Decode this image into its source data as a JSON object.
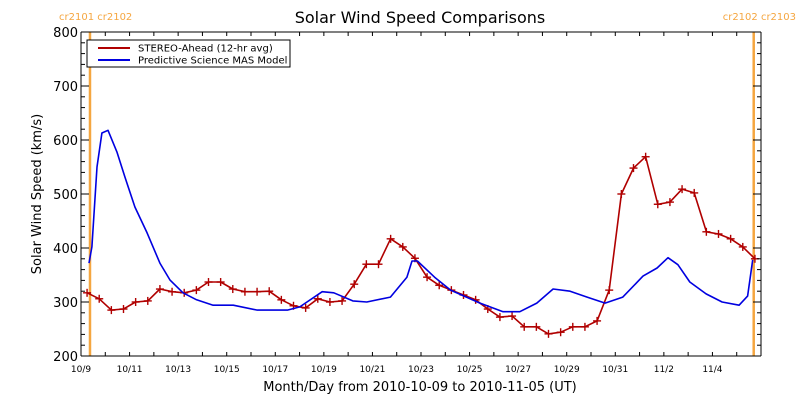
{
  "chart_data": {
    "type": "line",
    "title": "Solar Wind Speed Comparisons",
    "xlabel": "Month/Day from 2010-10-09 to 2010-11-05 (UT)",
    "ylabel": "Solar Wind Speed (km/s)",
    "x_units": "days since 2010-10-09 00:00 UT",
    "xlim": [
      0,
      28
    ],
    "ylim": [
      200,
      800
    ],
    "y_ticks": [
      200,
      300,
      400,
      500,
      600,
      700,
      800
    ],
    "y_tick_labels": [
      "200",
      "300",
      "400",
      "500",
      "600",
      "700",
      "800"
    ],
    "x_ticks": [
      0,
      2,
      4,
      6,
      8,
      10,
      12,
      14,
      16,
      18,
      20,
      22,
      24,
      26
    ],
    "x_tick_labels": [
      "10/9",
      "10/11",
      "10/13",
      "10/15",
      "10/17",
      "10/19",
      "10/21",
      "10/23",
      "10/25",
      "10/27",
      "10/29",
      "10/31",
      "11/2",
      "11/4"
    ],
    "grid": false,
    "legend_position": "top-left",
    "carrington_markers": [
      {
        "day": 0.37,
        "label": "cr2101 cr2102",
        "align": "left"
      },
      {
        "day": 27.7,
        "label": "cr2102 cr2103",
        "align": "right"
      }
    ],
    "series": [
      {
        "name": "STEREO-Ahead (12-hr avg)",
        "color": "#b00000",
        "marker": "plus",
        "x": [
          0.25,
          0.75,
          1.25,
          1.75,
          2.25,
          2.75,
          3.25,
          3.75,
          4.25,
          4.75,
          5.25,
          5.75,
          6.25,
          6.75,
          7.25,
          7.75,
          8.25,
          8.75,
          9.25,
          9.75,
          10.25,
          10.75,
          11.25,
          11.75,
          12.25,
          12.75,
          13.25,
          13.75,
          14.25,
          14.75,
          15.25,
          15.75,
          16.25,
          16.75,
          17.25,
          17.75,
          18.25,
          18.75,
          19.25,
          19.75,
          20.25,
          20.75,
          21.25,
          21.75,
          22.25,
          22.75,
          23.25,
          23.75,
          24.25,
          24.75,
          25.25,
          25.75,
          26.25,
          26.75,
          27.25,
          27.75
        ],
        "values": [
          317,
          306,
          285,
          287,
          300,
          302,
          324,
          319,
          317,
          322,
          337,
          337,
          324,
          319,
          319,
          320,
          304,
          293,
          289,
          306,
          300,
          302,
          333,
          370,
          370,
          417,
          402,
          381,
          346,
          331,
          322,
          313,
          304,
          287,
          272,
          274,
          254,
          254,
          241,
          244,
          254,
          254,
          265,
          322,
          500,
          548,
          569,
          481,
          485,
          509,
          502,
          430,
          426,
          417,
          402,
          380
        ]
      },
      {
        "name": "Predictive Science MAS Model",
        "color": "#0000e0",
        "marker": "none",
        "x": [
          0.33,
          0.45,
          0.66,
          0.86,
          1.11,
          1.48,
          1.81,
          2.22,
          2.72,
          3.25,
          3.66,
          4.2,
          4.76,
          5.44,
          6.27,
          7.26,
          8.5,
          9.01,
          9.93,
          10.41,
          11.19,
          11.77,
          12.74,
          13.42,
          13.63,
          13.85,
          14.56,
          15.22,
          16.43,
          17.38,
          18.07,
          18.77,
          19.44,
          20.14,
          20.84,
          21.58,
          22.31,
          23.14,
          23.72,
          24.17,
          24.58,
          25.07,
          25.74,
          26.4,
          27.1,
          27.45,
          27.66
        ],
        "values": [
          372,
          402,
          550,
          613,
          618,
          578,
          531,
          476,
          428,
          372,
          341,
          317,
          304,
          294,
          294,
          285,
          285,
          291,
          319,
          317,
          302,
          300,
          309,
          346,
          376,
          376,
          346,
          322,
          298,
          282,
          282,
          298,
          324,
          320,
          309,
          298,
          309,
          348,
          363,
          382,
          369,
          337,
          315,
          300,
          294,
          311,
          378
        ]
      }
    ]
  }
}
